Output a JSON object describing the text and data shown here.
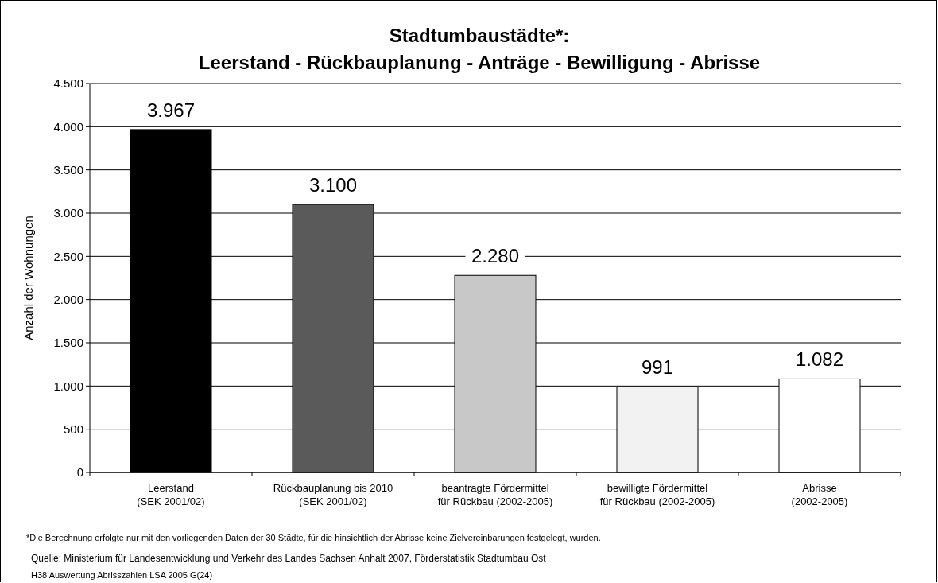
{
  "chart_data": {
    "type": "bar",
    "title": "Stadtumbaustädte*:",
    "subtitle": "Leerstand - Rückbauplanung - Anträge - Bewilligung - Abrisse",
    "ylabel": "Anzahl der Wohnungen",
    "categories": [
      "Leerstand\n(SEK 2001/02)",
      "Rückbauplanung bis 2010\n(SEK 2001/02)",
      "beantragte Fördermittel\nfür Rückbau (2002-2005)",
      "bewilligte Fördermittel\nfür Rückbau (2002-2005)",
      "Abrisse\n(2002-2005)"
    ],
    "values": [
      3967,
      3100,
      2280,
      991,
      1082
    ],
    "value_labels": [
      "3.967",
      "3.100",
      "2.280",
      "991",
      "1.082"
    ],
    "colors": [
      "#000000",
      "#5a5a5a",
      "#c8c8c8",
      "#f2f2f2",
      "#ffffff"
    ],
    "ylim": [
      0,
      4500
    ],
    "yticks": [
      0,
      {
        "value": 500,
        "label": "500"
      },
      {
        "value": 1000,
        "label": "1.000"
      },
      {
        "value": 1500,
        "label": "1.500"
      },
      {
        "value": 2000,
        "label": "2.000"
      },
      {
        "value": 2500,
        "label": "2.500"
      },
      {
        "value": 3000,
        "label": "3.000"
      },
      {
        "value": 3500,
        "label": "3.500"
      },
      {
        "value": 4000,
        "label": "4.000"
      },
      {
        "value": 4500,
        "label": "4.500"
      }
    ],
    "grid": "y",
    "annotations": [
      "*Die Berechnung erfolgte nur mit den vorliegenden Daten der 30 Städte, für die  hinsichtlich der Abrisse keine Zielvereinbarungen festgelegt, wurden.",
      "Quelle: Ministerium für Landesentwicklung und Verkehr des Landes Sachsen Anhalt 2007, Förderstatistik Stadtumbau Ost",
      "H38 Auswertung Abrisszahlen LSA 2005 G(24)"
    ]
  }
}
